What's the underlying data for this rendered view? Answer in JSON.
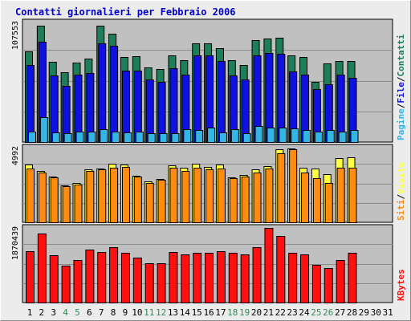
{
  "colors": {
    "plot_bg": "#c0c0c0",
    "grid": "#8c8c8c",
    "title": "#0000cc",
    "weekday_label": "#000000",
    "weekend_label": "#2e8b57",
    "pages": "#33b5e5",
    "files": "#1010e0",
    "hits": "#1e7e5a",
    "visits": "#ffff44",
    "sites": "#ff8c10",
    "kbytes": "#ff1010"
  },
  "chart_data": [
    {
      "type": "bar",
      "panel": "top",
      "title": "Contatti giornalieri per Febbraio 2006",
      "ylabel_max": "107553",
      "ymax": 107553,
      "grid": true,
      "legend": [
        {
          "name": "Pagine",
          "color": "#33b5e5"
        },
        {
          "name": "File",
          "color": "#1010e0"
        },
        {
          "name": "Contatti",
          "color": "#1e7e5a"
        }
      ],
      "legend_separator": "/",
      "categories": [
        "1",
        "2",
        "3",
        "4",
        "5",
        "6",
        "7",
        "8",
        "9",
        "10",
        "11",
        "12",
        "13",
        "14",
        "15",
        "16",
        "17",
        "18",
        "19",
        "20",
        "21",
        "22",
        "23",
        "24",
        "25",
        "26",
        "27",
        "28",
        "29",
        "30",
        "31"
      ],
      "weekend_categories": [
        "4",
        "5",
        "11",
        "12",
        "18",
        "19",
        "25",
        "26"
      ],
      "series": [
        {
          "name": "Contatti",
          "values": [
            84000,
            107553,
            74300,
            64600,
            73600,
            76800,
            107553,
            99900,
            78600,
            79500,
            68700,
            67800,
            80400,
            75700,
            91500,
            91500,
            87100,
            75700,
            71500,
            94000,
            95400,
            96300,
            80400,
            78600,
            55600,
            72600,
            75200,
            75200,
            0,
            0,
            0
          ]
        },
        {
          "name": "File",
          "values": [
            71500,
            92800,
            61300,
            52000,
            62200,
            63800,
            91000,
            89000,
            66000,
            66000,
            58000,
            56000,
            68000,
            62000,
            80000,
            80400,
            75200,
            61300,
            57800,
            80400,
            82700,
            81300,
            65000,
            62200,
            49000,
            53500,
            62200,
            59700,
            0,
            0,
            0
          ]
        },
        {
          "name": "Pagine",
          "values": [
            10000,
            23000,
            9000,
            8000,
            10000,
            9500,
            12000,
            10000,
            9000,
            9500,
            8500,
            8000,
            8000,
            12000,
            11000,
            13000,
            9000,
            11500,
            8000,
            14500,
            13000,
            13000,
            12800,
            11000,
            10000,
            10800,
            9700,
            11000,
            0,
            0,
            0
          ]
        }
      ]
    },
    {
      "type": "bar",
      "panel": "middle",
      "ylabel_max": "4992",
      "ymax": 4992,
      "grid": true,
      "legend": [
        {
          "name": "Siti",
          "color": "#ff8c10"
        },
        {
          "name": "Visite",
          "color": "#ffff44"
        }
      ],
      "legend_separator": "/",
      "categories": [
        "1",
        "2",
        "3",
        "4",
        "5",
        "6",
        "7",
        "8",
        "9",
        "10",
        "11",
        "12",
        "13",
        "14",
        "15",
        "16",
        "17",
        "18",
        "19",
        "20",
        "21",
        "22",
        "23",
        "24",
        "25",
        "26",
        "27",
        "28",
        "29",
        "30",
        "31"
      ],
      "series": [
        {
          "name": "Visite",
          "values": [
            3840,
            3430,
            3080,
            2460,
            2620,
            3530,
            3600,
            3920,
            3840,
            3130,
            2760,
            2890,
            3810,
            3640,
            3940,
            3730,
            3840,
            3030,
            3170,
            3530,
            3780,
            4880,
            4940,
            3630,
            3620,
            3220,
            4310,
            4370,
            0,
            0,
            0
          ]
        },
        {
          "name": "Siti",
          "values": [
            3600,
            3320,
            3030,
            2400,
            2520,
            3430,
            3540,
            3640,
            3690,
            3060,
            2640,
            2850,
            3630,
            3430,
            3640,
            3530,
            3580,
            2940,
            3080,
            3330,
            3600,
            4600,
            4880,
            3350,
            2950,
            2620,
            3630,
            3640,
            0,
            0,
            0
          ]
        }
      ]
    },
    {
      "type": "bar",
      "panel": "bottom",
      "ylabel_max": "1870439",
      "ymax": 1870439,
      "grid": true,
      "legend": [
        {
          "name": "KBytes",
          "color": "#ff1010"
        }
      ],
      "categories": [
        "1",
        "2",
        "3",
        "4",
        "5",
        "6",
        "7",
        "8",
        "9",
        "10",
        "11",
        "12",
        "13",
        "14",
        "15",
        "16",
        "17",
        "18",
        "19",
        "20",
        "21",
        "22",
        "23",
        "24",
        "25",
        "26",
        "27",
        "28",
        "29",
        "30",
        "31"
      ],
      "series": [
        {
          "name": "KBytes",
          "values": [
            1290000,
            1730000,
            1180000,
            930000,
            1060000,
            1330000,
            1270000,
            1380000,
            1250000,
            1130000,
            990000,
            990000,
            1270000,
            1200000,
            1250000,
            1250000,
            1290000,
            1250000,
            1200000,
            1380000,
            1870439,
            1660000,
            1250000,
            1200000,
            950000,
            870000,
            1060000,
            1250000,
            0,
            0,
            0
          ]
        }
      ]
    }
  ]
}
